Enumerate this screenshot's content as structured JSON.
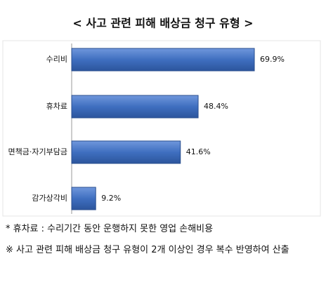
{
  "chart_data": {
    "type": "bar",
    "orientation": "horizontal",
    "title": "< 사고 관련 피해 배상금 청구 유형 >",
    "categories": [
      "수리비",
      "휴차료",
      "면책금·자기부담금",
      "감가상각비"
    ],
    "values": [
      69.9,
      48.4,
      41.6,
      9.2
    ],
    "value_labels": [
      "69.9%",
      "48.4%",
      "41.6%",
      "9.2%"
    ],
    "color": "#3f6fc0",
    "notes": [
      "* 휴차료 : 수리기간 동안 운행하지 못한 영업 손해비용",
      "※ 사고 관련 피해 배상금 청구 유형이 2개 이상인 경우 복수 반영하여 산출"
    ]
  }
}
